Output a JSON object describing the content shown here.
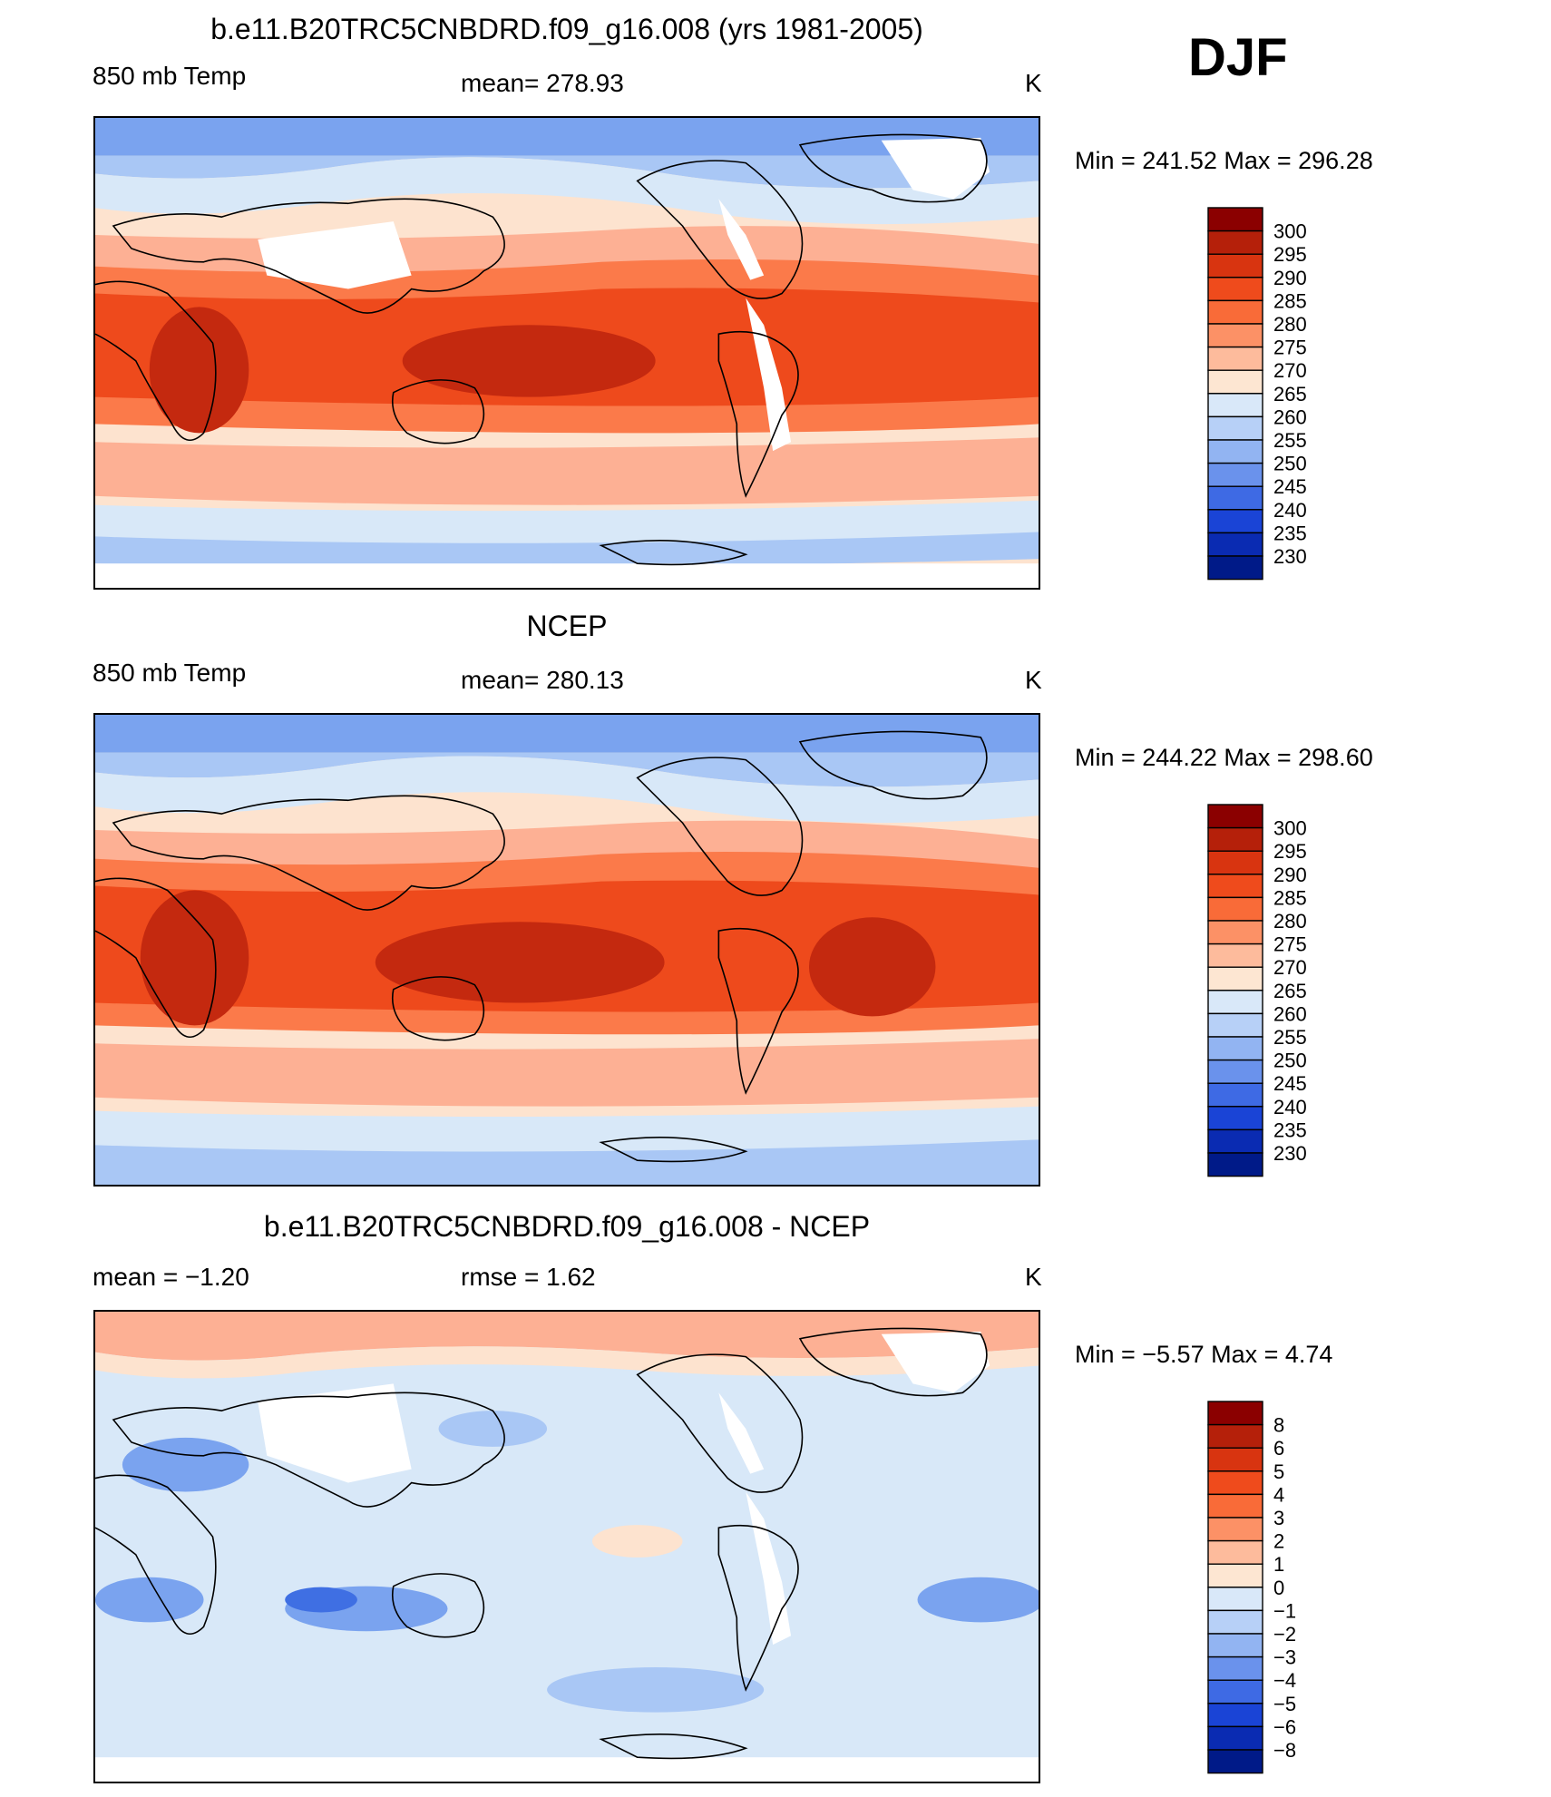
{
  "season": "DJF",
  "panels": [
    {
      "title": "b.e11.B20TRC5CNBDRD.f09_g16.008 (yrs 1981-2005)",
      "left_label": "850 mb Temp",
      "center_label": "mean=  278.93",
      "units": "K",
      "minmax": "Min  =  241.52  Max  =  296.28",
      "legend_levels": [
        "300",
        "295",
        "290",
        "285",
        "280",
        "275",
        "270",
        "265",
        "260",
        "255",
        "250",
        "245",
        "240",
        "235",
        "230"
      ],
      "colors": {
        "warm_deep": "#c4290f",
        "warm": "#ee4a1c",
        "warm_mid": "#fb7a4a",
        "warm_light": "#fdb094",
        "cream": "#fde3cf",
        "pale_blue": "#d8e8f8",
        "light_blue": "#a9c7f5",
        "blue": "#7aa3ef",
        "deep_blue": "#3f6fe3",
        "missing": "#ffffff"
      }
    },
    {
      "title": "NCEP",
      "left_label": "850 mb Temp",
      "center_label": "mean=  280.13",
      "units": "K",
      "minmax": "Min  =  244.22  Max  =  298.60",
      "legend_levels": [
        "300",
        "295",
        "290",
        "285",
        "280",
        "275",
        "270",
        "265",
        "260",
        "255",
        "250",
        "245",
        "240",
        "235",
        "230"
      ],
      "colors": {
        "warm_deep": "#c4290f",
        "warm": "#ee4a1c",
        "warm_mid": "#fb7a4a",
        "warm_light": "#fdb094",
        "cream": "#fde3cf",
        "pale_blue": "#d8e8f8",
        "light_blue": "#a9c7f5",
        "blue": "#7aa3ef",
        "deep_blue": "#3f6fe3",
        "missing": "#ffffff"
      }
    },
    {
      "title": "b.e11.B20TRC5CNBDRD.f09_g16.008 - NCEP",
      "left_label": "mean =    −1.20",
      "center_label": "rmse =     1.62",
      "units": "K",
      "minmax": "Min  =    −5.57  Max  =     4.74",
      "legend_levels": [
        "8",
        "6",
        "5",
        "4",
        "3",
        "2",
        "1",
        "0",
        "−1",
        "−2",
        "−3",
        "−4",
        "−5",
        "−6",
        "−8"
      ],
      "colors": {
        "warm_deep": "#c4290f",
        "warm": "#ee4a1c",
        "warm_mid": "#fb7a4a",
        "warm_light": "#fdb094",
        "cream": "#fde3cf",
        "pale_blue": "#d8e8f8",
        "light_blue": "#a9c7f5",
        "blue": "#7aa3ef",
        "deep_blue": "#3f6fe3",
        "missing": "#ffffff"
      }
    }
  ],
  "colorbar": [
    "#8b0000",
    "#b5200a",
    "#d83410",
    "#ef4b1c",
    "#f96b38",
    "#fc9166",
    "#fdbb9c",
    "#fde6d2",
    "#d9e8f9",
    "#b7d0f7",
    "#92b4f2",
    "#6a92ec",
    "#3e6ae4",
    "#1a44d6",
    "#0a2bb2",
    "#001a88"
  ]
}
